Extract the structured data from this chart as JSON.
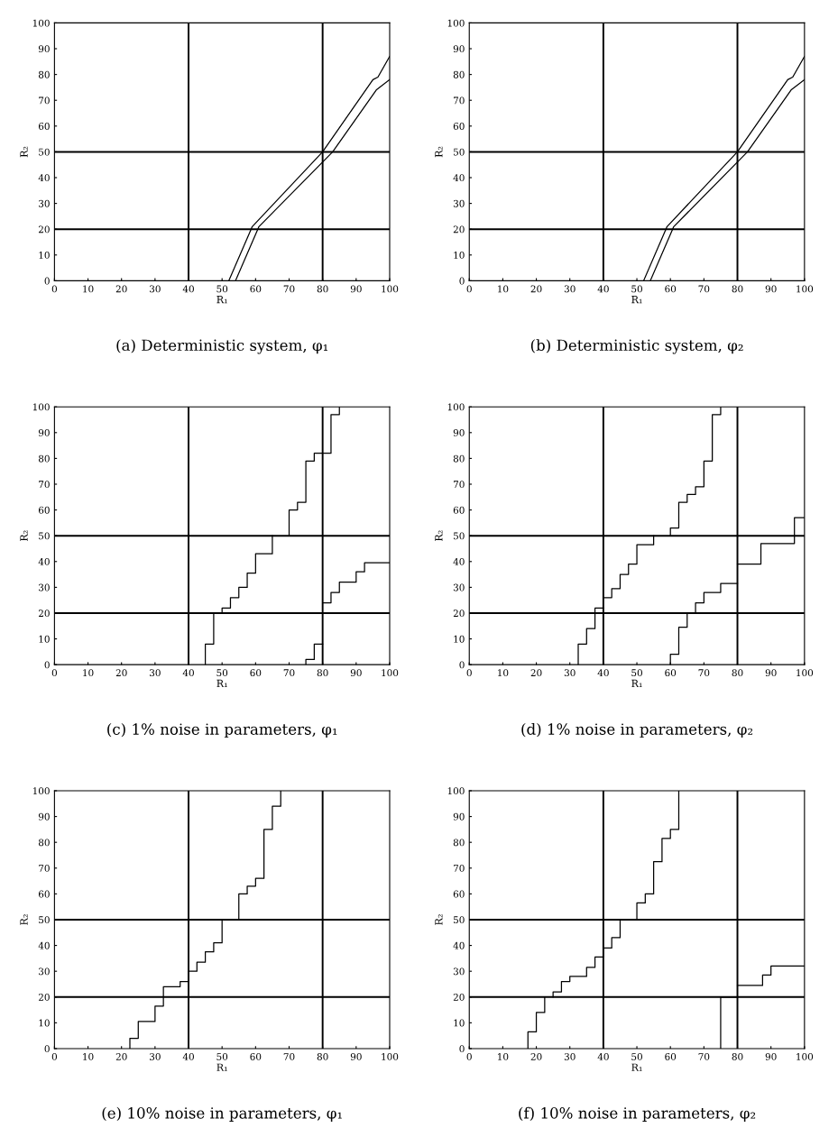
{
  "chart_data": [
    {
      "type": "line",
      "title": "(a) Deterministic system, φ₁",
      "xlabel": "R₁",
      "ylabel": "R₂",
      "xlim": [
        0,
        100
      ],
      "ylim": [
        0,
        100
      ],
      "xticks": [
        0,
        10,
        20,
        30,
        40,
        50,
        60,
        70,
        80,
        90,
        100
      ],
      "yticks": [
        0,
        10,
        20,
        30,
        40,
        50,
        60,
        70,
        80,
        90,
        100
      ],
      "grid": false,
      "legend": false,
      "ref_lines": [
        {
          "axis": "x",
          "value": 40,
          "color": "#000000"
        },
        {
          "axis": "x",
          "value": 80,
          "color": "#000000"
        },
        {
          "axis": "y",
          "value": 20,
          "color": "#000000"
        },
        {
          "axis": "y",
          "value": 50,
          "color": "#000000"
        }
      ],
      "series": [
        {
          "color": "#000000",
          "x": [
            52,
            59,
            80,
            95,
            96.5,
            100
          ],
          "values": [
            0,
            21,
            50,
            78,
            79,
            87
          ]
        },
        {
          "color": "#000000",
          "x": [
            54,
            61,
            83,
            96,
            100
          ],
          "values": [
            0,
            21,
            50,
            74,
            78
          ]
        }
      ]
    },
    {
      "type": "line",
      "title": "(b) Deterministic system, φ₂",
      "xlabel": "R₁",
      "ylabel": "R₂",
      "xlim": [
        0,
        100
      ],
      "ylim": [
        0,
        100
      ],
      "xticks": [
        0,
        10,
        20,
        30,
        40,
        50,
        60,
        70,
        80,
        90,
        100
      ],
      "yticks": [
        0,
        10,
        20,
        30,
        40,
        50,
        60,
        70,
        80,
        90,
        100
      ],
      "grid": false,
      "legend": false,
      "ref_lines": [
        {
          "axis": "x",
          "value": 40,
          "color": "#000000"
        },
        {
          "axis": "x",
          "value": 80,
          "color": "#000000"
        },
        {
          "axis": "y",
          "value": 20,
          "color": "#000000"
        },
        {
          "axis": "y",
          "value": 50,
          "color": "#000000"
        }
      ],
      "series": [
        {
          "color": "#000000",
          "x": [
            52,
            59,
            80,
            95,
            96.5,
            100
          ],
          "values": [
            0,
            21,
            50,
            78,
            79,
            87
          ]
        },
        {
          "color": "#000000",
          "x": [
            54,
            61,
            83,
            96,
            100
          ],
          "values": [
            0,
            21,
            50,
            74,
            78
          ]
        }
      ]
    },
    {
      "type": "line",
      "title": "(c) 1% noise in parameters, φ₁",
      "xlabel": "R₁",
      "ylabel": "R₂",
      "xlim": [
        0,
        100
      ],
      "ylim": [
        0,
        100
      ],
      "xticks": [
        0,
        10,
        20,
        30,
        40,
        50,
        60,
        70,
        80,
        90,
        100
      ],
      "yticks": [
        0,
        10,
        20,
        30,
        40,
        50,
        60,
        70,
        80,
        90,
        100
      ],
      "grid": false,
      "legend": false,
      "ref_lines": [
        {
          "axis": "x",
          "value": 40,
          "color": "#000000"
        },
        {
          "axis": "x",
          "value": 80,
          "color": "#000000"
        },
        {
          "axis": "y",
          "value": 20,
          "color": "#000000"
        },
        {
          "axis": "y",
          "value": 50,
          "color": "#000000"
        }
      ],
      "series": [
        {
          "color": "#000000",
          "x": [
            45,
            45,
            47.5,
            47.5
          ],
          "values": [
            0,
            8,
            8,
            20
          ]
        },
        {
          "color": "#000000",
          "x": [
            50,
            50,
            52.5,
            52.5,
            55,
            55,
            57.5,
            57.5,
            60,
            60,
            65,
            65
          ],
          "values": [
            20,
            22,
            22,
            26,
            26,
            30,
            30,
            35.5,
            35.5,
            43,
            43,
            50
          ]
        },
        {
          "color": "#000000",
          "x": [
            70,
            70,
            72.5,
            72.5,
            75,
            75,
            77.5,
            77.5,
            82.5,
            82.5,
            85,
            85
          ],
          "values": [
            50,
            60,
            60,
            63,
            63,
            79,
            79,
            82,
            82,
            97,
            97,
            100
          ]
        },
        {
          "color": "#000000",
          "x": [
            75,
            75,
            77.5,
            77.5,
            80
          ],
          "values": [
            0,
            2,
            2,
            8,
            8
          ]
        },
        {
          "color": "#000000",
          "x": [
            80,
            82.5,
            82.5,
            85,
            85,
            90,
            90,
            92.5,
            92.5,
            100
          ],
          "values": [
            24,
            24,
            28,
            28,
            32,
            32,
            36,
            36,
            39.5,
            39.5
          ]
        }
      ]
    },
    {
      "type": "line",
      "title": "(d) 1% noise in parameters, φ₂",
      "xlabel": "R₁",
      "ylabel": "R₂",
      "xlim": [
        0,
        100
      ],
      "ylim": [
        0,
        100
      ],
      "xticks": [
        0,
        10,
        20,
        30,
        40,
        50,
        60,
        70,
        80,
        90,
        100
      ],
      "yticks": [
        0,
        10,
        20,
        30,
        40,
        50,
        60,
        70,
        80,
        90,
        100
      ],
      "grid": false,
      "legend": false,
      "ref_lines": [
        {
          "axis": "x",
          "value": 40,
          "color": "#000000"
        },
        {
          "axis": "x",
          "value": 80,
          "color": "#000000"
        },
        {
          "axis": "y",
          "value": 20,
          "color": "#000000"
        },
        {
          "axis": "y",
          "value": 50,
          "color": "#000000"
        }
      ],
      "series": [
        {
          "color": "#000000",
          "x": [
            32.5,
            32.5,
            35,
            35,
            37.5,
            37.5,
            40
          ],
          "values": [
            0,
            8,
            8,
            14,
            14,
            22,
            22
          ]
        },
        {
          "color": "#000000",
          "x": [
            40,
            42.5,
            42.5,
            45,
            45,
            47.5,
            47.5,
            50,
            50,
            55,
            55
          ],
          "values": [
            26,
            26,
            29.5,
            29.5,
            35,
            35,
            39,
            39,
            46.5,
            46.5,
            50
          ]
        },
        {
          "color": "#000000",
          "x": [
            60,
            60,
            62.5,
            62.5,
            65,
            65,
            67.5,
            67.5,
            70,
            70,
            72.5,
            72.5,
            75,
            75
          ],
          "values": [
            50,
            53,
            53,
            63,
            63,
            66,
            66,
            69,
            69,
            79,
            79,
            97,
            97,
            100
          ]
        },
        {
          "color": "#000000",
          "x": [
            60,
            60,
            62.5,
            62.5,
            65,
            65
          ],
          "values": [
            0,
            4,
            4,
            14.5,
            14.5,
            20
          ]
        },
        {
          "color": "#000000",
          "x": [
            67.5,
            67.5,
            70,
            70,
            75,
            75,
            80
          ],
          "values": [
            20,
            24,
            24,
            28,
            28,
            31.5,
            31.5
          ]
        },
        {
          "color": "#000000",
          "x": [
            80,
            87,
            87,
            97,
            97,
            100
          ],
          "values": [
            39,
            39,
            47,
            47,
            57,
            57
          ]
        }
      ]
    },
    {
      "type": "line",
      "title": "(e) 10% noise in parameters, φ₁",
      "xlabel": "R₁",
      "ylabel": "R₂",
      "xlim": [
        0,
        100
      ],
      "ylim": [
        0,
        100
      ],
      "xticks": [
        0,
        10,
        20,
        30,
        40,
        50,
        60,
        70,
        80,
        90,
        100
      ],
      "yticks": [
        0,
        10,
        20,
        30,
        40,
        50,
        60,
        70,
        80,
        90,
        100
      ],
      "grid": false,
      "legend": false,
      "ref_lines": [
        {
          "axis": "x",
          "value": 40,
          "color": "#000000"
        },
        {
          "axis": "x",
          "value": 80,
          "color": "#000000"
        },
        {
          "axis": "y",
          "value": 20,
          "color": "#000000"
        },
        {
          "axis": "y",
          "value": 50,
          "color": "#000000"
        }
      ],
      "series": [
        {
          "color": "#000000",
          "x": [
            22.5,
            22.5,
            25,
            25,
            30,
            30,
            32.5,
            32.5,
            37.5,
            37.5,
            40,
            40,
            42.5,
            42.5,
            45,
            45,
            47.5,
            47.5,
            50,
            50
          ],
          "values": [
            0,
            4,
            4,
            10.5,
            10.5,
            16.5,
            16.5,
            24,
            24,
            26,
            26,
            30,
            30,
            33.5,
            33.5,
            37.5,
            37.5,
            41,
            41,
            50
          ]
        },
        {
          "color": "#000000",
          "x": [
            55,
            55,
            57.5,
            57.5,
            60,
            60,
            62.5,
            62.5,
            65,
            65,
            67.5,
            67.5
          ],
          "values": [
            50,
            60,
            60,
            63,
            63,
            66,
            66,
            85,
            85,
            94,
            94,
            100
          ]
        }
      ]
    },
    {
      "type": "line",
      "title": "(f) 10% noise in parameters, φ₂",
      "xlabel": "R₁",
      "ylabel": "R₂",
      "xlim": [
        0,
        100
      ],
      "ylim": [
        0,
        100
      ],
      "xticks": [
        0,
        10,
        20,
        30,
        40,
        50,
        60,
        70,
        80,
        90,
        100
      ],
      "yticks": [
        0,
        10,
        20,
        30,
        40,
        50,
        60,
        70,
        80,
        90,
        100
      ],
      "grid": false,
      "legend": false,
      "ref_lines": [
        {
          "axis": "x",
          "value": 40,
          "color": "#000000"
        },
        {
          "axis": "x",
          "value": 80,
          "color": "#000000"
        },
        {
          "axis": "y",
          "value": 20,
          "color": "#000000"
        },
        {
          "axis": "y",
          "value": 50,
          "color": "#000000"
        }
      ],
      "series": [
        {
          "color": "#000000",
          "x": [
            17.5,
            17.5,
            20,
            20,
            22.5,
            22.5
          ],
          "values": [
            0,
            6.5,
            6.5,
            14,
            14,
            20
          ]
        },
        {
          "color": "#000000",
          "x": [
            25,
            25,
            27.5,
            27.5,
            30,
            30,
            35,
            35,
            37.5,
            37.5,
            40,
            40,
            42.5,
            42.5,
            45,
            45
          ],
          "values": [
            20,
            22,
            22,
            26,
            26,
            28,
            28,
            31.5,
            31.5,
            35.5,
            35.5,
            39,
            39,
            43,
            43,
            50
          ]
        },
        {
          "color": "#000000",
          "x": [
            50,
            50,
            52.5,
            52.5,
            55,
            55,
            57.5,
            57.5,
            60,
            60,
            62.5,
            62.5
          ],
          "values": [
            50,
            56.5,
            56.5,
            60,
            60,
            72.5,
            72.5,
            81.5,
            81.5,
            85,
            85,
            100
          ]
        },
        {
          "color": "#000000",
          "x": [
            75,
            75,
            80
          ],
          "values": [
            0,
            20,
            20
          ]
        },
        {
          "color": "#000000",
          "x": [
            80,
            87.5,
            87.5,
            90,
            90,
            100
          ],
          "values": [
            24.5,
            24.5,
            28.5,
            28.5,
            32,
            32
          ]
        }
      ]
    }
  ]
}
